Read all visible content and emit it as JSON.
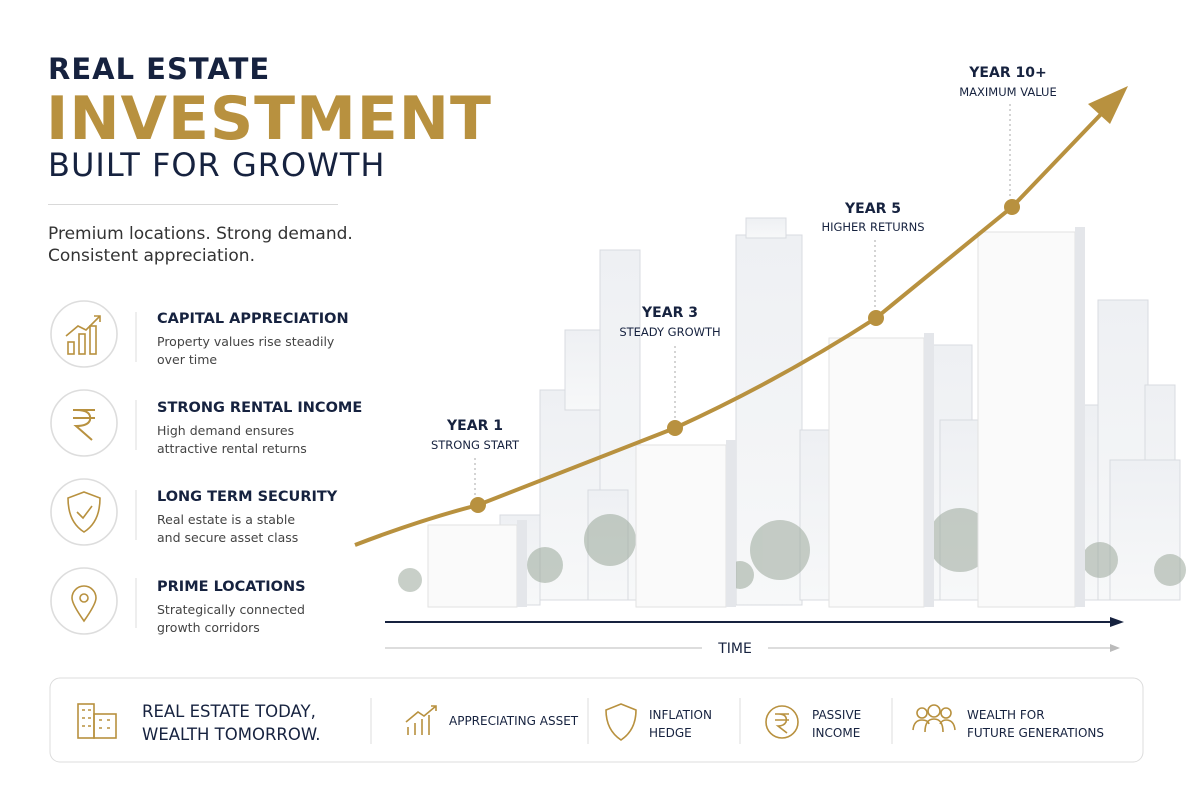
{
  "header": {
    "line1": "REAL ESTATE",
    "line2": "INVESTMENT",
    "line3": "BUILT FOR GROWTH",
    "tagline": [
      "Premium locations. Strong demand.",
      "Consistent appreciation."
    ]
  },
  "features": [
    {
      "title": "CAPITAL APPRECIATION",
      "desc": [
        "Property values rise steadily",
        "over time"
      ]
    },
    {
      "title": "STRONG RENTAL INCOME",
      "desc": [
        "High demand ensures",
        "attractive rental returns"
      ]
    },
    {
      "title": "LONG TERM SECURITY",
      "desc": [
        "Real estate is a stable",
        "and secure asset class"
      ]
    },
    {
      "title": "PRIME LOCATIONS",
      "desc": [
        "Strategically connected",
        "growth corridors"
      ]
    }
  ],
  "milestones": [
    {
      "label": "YEAR 1",
      "sublabel": "STRONG START"
    },
    {
      "label": "YEAR 3",
      "sublabel": "STEADY GROWTH"
    },
    {
      "label": "YEAR 5",
      "sublabel": "HIGHER RETURNS"
    },
    {
      "label": "YEAR 10+",
      "sublabel": "MAXIMUM VALUE"
    }
  ],
  "axis_label": "TIME",
  "footer": {
    "slogan": [
      "REAL ESTATE TODAY,",
      "WEALTH TOMORROW."
    ],
    "items": [
      [
        "APPRECIATING ASSET"
      ],
      [
        "INFLATION",
        "HEDGE"
      ],
      [
        "PASSIVE",
        "INCOME"
      ],
      [
        "WEALTH FOR",
        "FUTURE GENERATIONS"
      ]
    ]
  }
}
